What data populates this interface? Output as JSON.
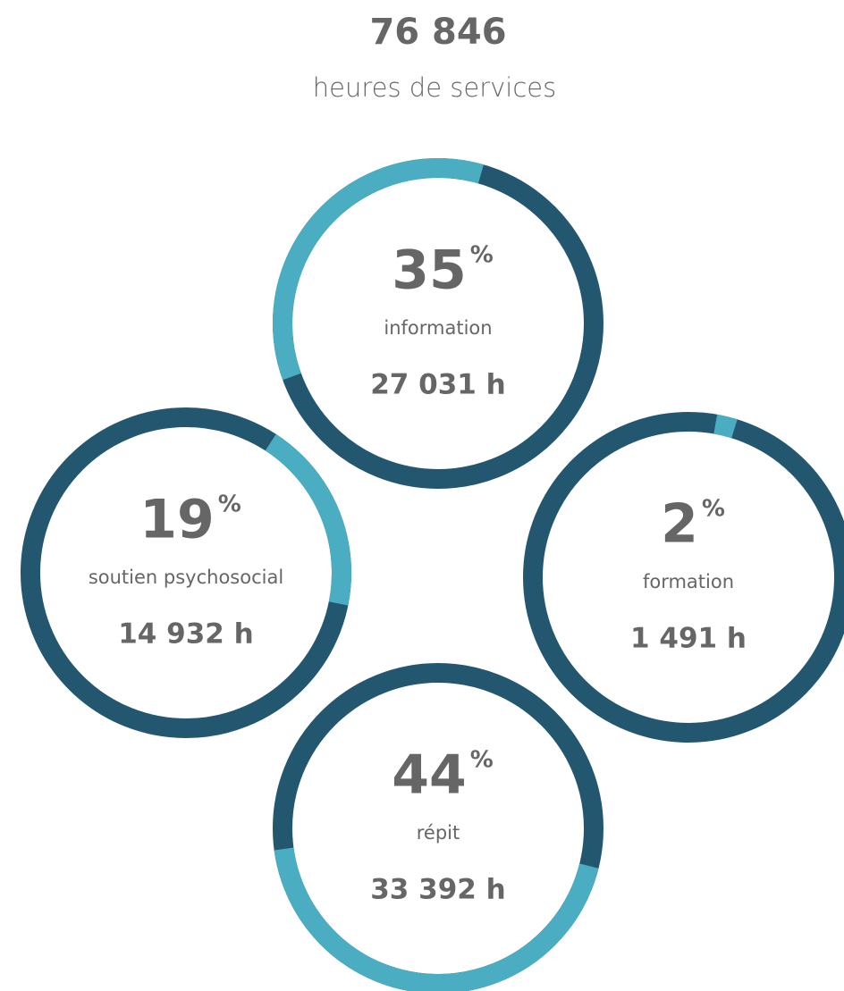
{
  "header": {
    "total": "76 846",
    "label": "heures de services"
  },
  "chart_data": [
    {
      "type": "ring",
      "value": 35,
      "unit": "%",
      "category": "information",
      "hours": "27 031 h",
      "color": "#4aadc2",
      "track_color": "#23566f"
    },
    {
      "type": "ring",
      "value": 19,
      "unit": "%",
      "category": "soutien psychosocial",
      "hours": "14 932 h",
      "color": "#4aadc2",
      "track_color": "#23566f"
    },
    {
      "type": "ring",
      "value": 2,
      "unit": "%",
      "category": "formation",
      "hours": "1 491 h",
      "color": "#4aadc2",
      "track_color": "#23566f"
    },
    {
      "type": "ring",
      "value": 44,
      "unit": "%",
      "category": "répit",
      "hours": "33 392 h",
      "color": "#4aadc2",
      "track_color": "#23566f"
    }
  ]
}
